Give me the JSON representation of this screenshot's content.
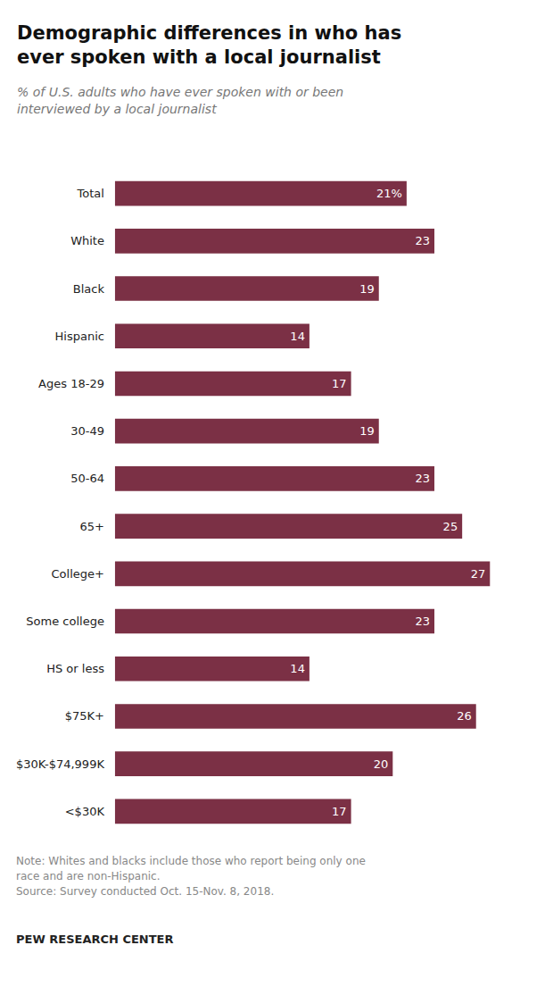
{
  "chart_data": {
    "type": "bar",
    "orientation": "horizontal",
    "title": "Demographic differences in who has\never spoken with a local journalist",
    "subtitle": "% of U.S. adults who have ever spoken with or been\ninterviewed by a local journalist",
    "annotations": [
      "Note: Whites and blacks include those who report being only one\nrace and are non-Hispanic.\nSource: Survey conducted Oct. 15-Nov. 8, 2018.",
      "PEW RESEARCH CENTER"
    ],
    "categories": [
      "Total",
      "White",
      "Black",
      "Hispanic",
      "Ages 18-29",
      "30-49",
      "50-64",
      "65+",
      "College+",
      "Some college",
      "HS or less",
      "$75K+",
      "$30K-$74,999K",
      "<$30K"
    ],
    "values": [
      21,
      23,
      19,
      14,
      17,
      19,
      23,
      25,
      27,
      23,
      14,
      26,
      20,
      17
    ],
    "value_labels": [
      "21%",
      "23",
      "19",
      "14",
      "17",
      "19",
      "23",
      "25",
      "27",
      "23",
      "14",
      "26",
      "20",
      "17"
    ],
    "color": "#7b3045",
    "xlim": [
      0,
      30
    ],
    "data_labels": true,
    "tick_labels": "y",
    "grid": false
  }
}
